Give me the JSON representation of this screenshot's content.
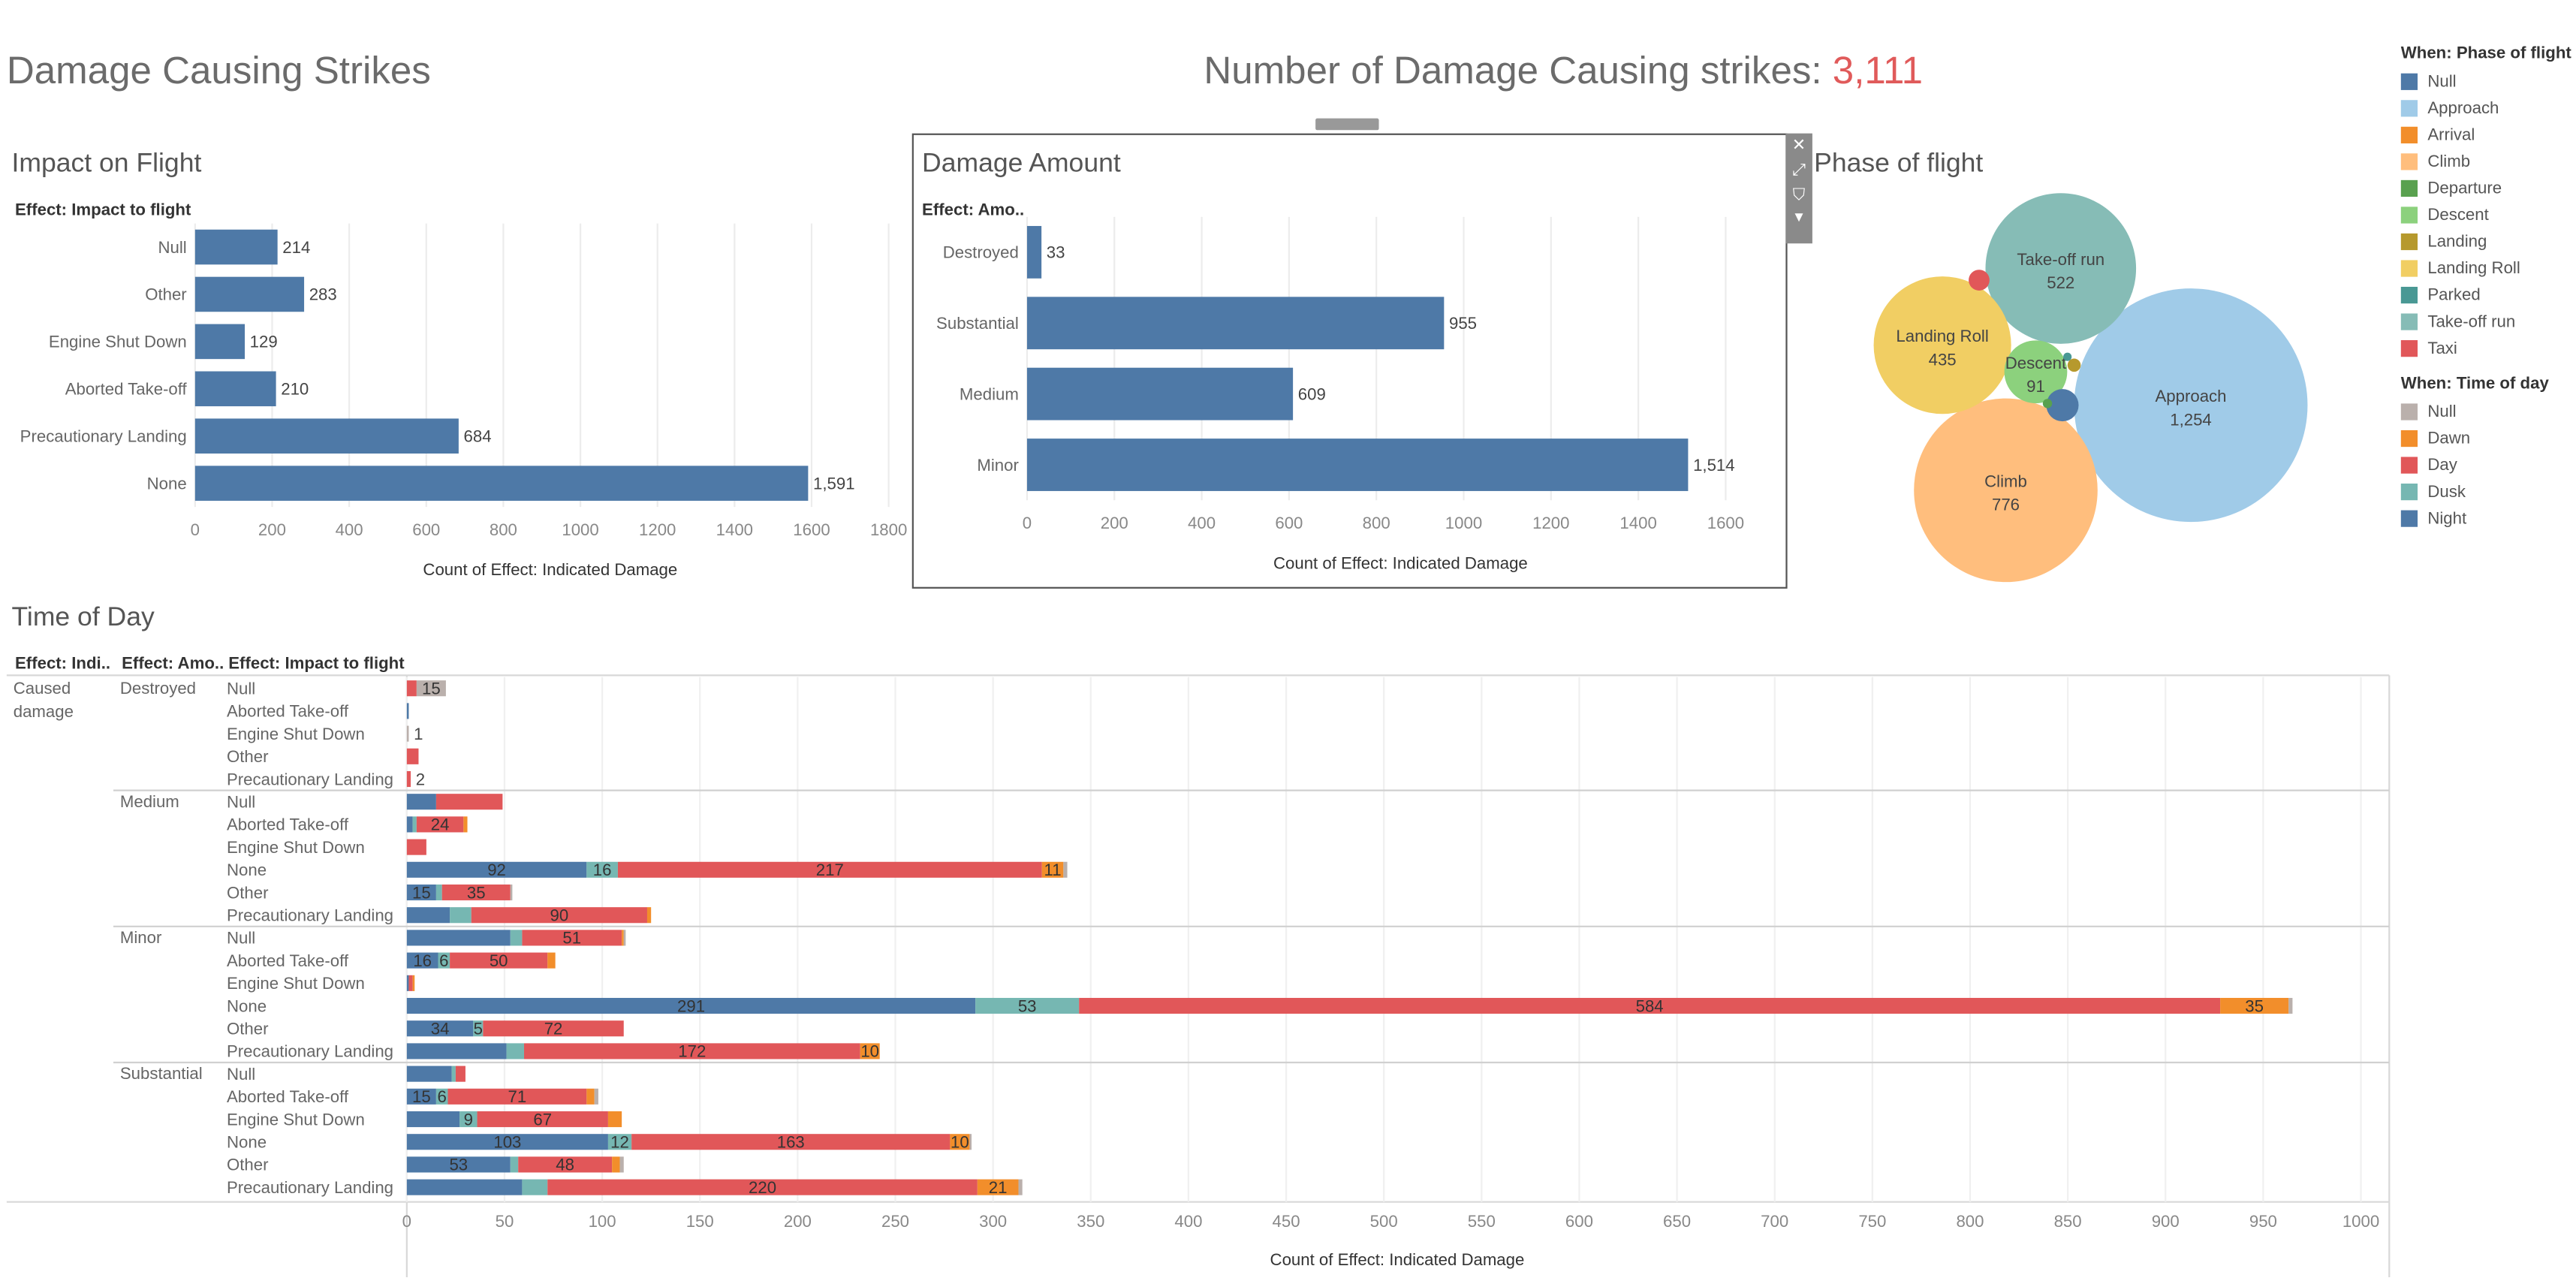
{
  "dashboard_title": "Damage Causing Strikes",
  "kpi": {
    "label": "Number of Damage Causing strikes: ",
    "value": "3,111"
  },
  "legend_phase": {
    "title": "When: Phase of flight",
    "items": [
      {
        "label": "Null",
        "color": "#4e79a7"
      },
      {
        "label": "Approach",
        "color": "#a0cbe8"
      },
      {
        "label": "Arrival",
        "color": "#f28e2b"
      },
      {
        "label": "Climb",
        "color": "#ffbe7d"
      },
      {
        "label": "Departure",
        "color": "#59a14f"
      },
      {
        "label": "Descent",
        "color": "#8cd17d"
      },
      {
        "label": "Landing",
        "color": "#b6992d"
      },
      {
        "label": "Landing Roll",
        "color": "#f1ce63"
      },
      {
        "label": "Parked",
        "color": "#499894"
      },
      {
        "label": "Take-off run",
        "color": "#86bcb6"
      },
      {
        "label": "Taxi",
        "color": "#e15759"
      }
    ]
  },
  "legend_time": {
    "title": "When: Time of day",
    "items": [
      {
        "label": "Null",
        "color": "#bab0ac"
      },
      {
        "label": "Dawn",
        "color": "#f28e2b"
      },
      {
        "label": "Day",
        "color": "#e15759"
      },
      {
        "label": "Dusk",
        "color": "#76b7b2"
      },
      {
        "label": "Night",
        "color": "#4e79a7"
      }
    ]
  },
  "toolbar": {
    "close_icon": "✕",
    "popout_icon": "⤢",
    "filter_icon": "⛉",
    "more_icon": "▾"
  },
  "chart_data": [
    {
      "type": "bar",
      "orientation": "horizontal",
      "title": "Impact on Flight",
      "row_header": "Effect: Impact to flight",
      "categories": [
        "Null",
        "Other",
        "Engine Shut Down",
        "Aborted Take-off",
        "Precautionary Landing",
        "None"
      ],
      "values": [
        214,
        283,
        129,
        210,
        684,
        1591
      ],
      "value_labels": [
        "214",
        "283",
        "129",
        "210",
        "684",
        "1,591"
      ],
      "xlabel": "Count of Effect: Indicated Damage",
      "xlim": [
        0,
        1800
      ],
      "ticks": [
        0,
        200,
        400,
        600,
        800,
        1000,
        1200,
        1400,
        1600,
        1800
      ],
      "color": "#4e79a7"
    },
    {
      "type": "bar",
      "orientation": "horizontal",
      "title": "Damage Amount",
      "row_header": "Effect: Amo..",
      "categories": [
        "Destroyed",
        "Substantial",
        "Medium",
        "Minor"
      ],
      "values": [
        33,
        955,
        609,
        1514
      ],
      "value_labels": [
        "33",
        "955",
        "609",
        "1,514"
      ],
      "xlabel": "Count of Effect: Indicated Damage",
      "xlim": [
        0,
        1600
      ],
      "ticks": [
        0,
        200,
        400,
        600,
        800,
        1000,
        1200,
        1400,
        1600
      ],
      "color": "#4e79a7"
    },
    {
      "type": "bubble",
      "title": "Phase of flight",
      "bubbles": [
        {
          "label": "Approach",
          "value": 1254,
          "value_label": "1,254",
          "color": "#a0cbe8"
        },
        {
          "label": "Climb",
          "value": 776,
          "value_label": "776",
          "color": "#ffbe7d"
        },
        {
          "label": "Take-off run",
          "value": 522,
          "value_label": "522",
          "color": "#86bcb6"
        },
        {
          "label": "Landing Roll",
          "value": 435,
          "value_label": "435",
          "color": "#f1ce63"
        },
        {
          "label": "Descent",
          "value": 91,
          "value_label": "91",
          "color": "#8cd17d"
        },
        {
          "label": "",
          "value": 24,
          "color": "#4e79a7"
        },
        {
          "label": "",
          "value": 10,
          "color": "#e15759"
        },
        {
          "label": "",
          "value": 4,
          "color": "#b6992d"
        },
        {
          "label": "",
          "value": 2,
          "color": "#59a14f"
        },
        {
          "label": "",
          "value": 1,
          "color": "#499894"
        }
      ]
    },
    {
      "type": "bar",
      "orientation": "horizontal",
      "stacked": true,
      "title": "Time of Day",
      "headers": [
        "Effect: Indi..",
        "Effect: Amo..",
        "Effect: Impact to flight"
      ],
      "group1": "Caused damage",
      "xlabel": "Count of Effect: Indicated Damage",
      "xlim": [
        0,
        1000
      ],
      "ticks": [
        0,
        50,
        100,
        150,
        200,
        250,
        300,
        350,
        400,
        450,
        500,
        550,
        600,
        650,
        700,
        750,
        800,
        850,
        900,
        950,
        1000
      ],
      "series_order": [
        "Night",
        "Dusk",
        "Day",
        "Dawn",
        "Null"
      ],
      "series_colors": {
        "Night": "#4e79a7",
        "Dusk": "#76b7b2",
        "Day": "#e15759",
        "Dawn": "#f28e2b",
        "Null": "#bab0ac"
      },
      "groups": [
        {
          "label": "Destroyed",
          "rows": [
            {
              "label": "Null",
              "segs": {
                "Night": 0,
                "Dusk": 0,
                "Day": 5,
                "Dawn": 0,
                "Null": 15
              },
              "labels": {
                "Null": "15"
              }
            },
            {
              "label": "Aborted Take-off",
              "segs": {
                "Night": 1,
                "Dusk": 0,
                "Day": 0,
                "Dawn": 0,
                "Null": 0
              },
              "labels": {}
            },
            {
              "label": "Engine Shut Down",
              "segs": {
                "Night": 0,
                "Dusk": 0,
                "Day": 0,
                "Dawn": 0,
                "Null": 1
              },
              "labels": {},
              "end_label": "1"
            },
            {
              "label": "Other",
              "segs": {
                "Night": 0,
                "Dusk": 0,
                "Day": 6,
                "Dawn": 0,
                "Null": 0
              },
              "labels": {}
            },
            {
              "label": "Precautionary Landing",
              "segs": {
                "Night": 0,
                "Dusk": 0,
                "Day": 2,
                "Dawn": 0,
                "Null": 0
              },
              "labels": {},
              "end_label": "2"
            }
          ]
        },
        {
          "label": "Medium",
          "rows": [
            {
              "label": "Null",
              "segs": {
                "Night": 15,
                "Dusk": 0,
                "Day": 34,
                "Dawn": 0,
                "Null": 0
              },
              "labels": {}
            },
            {
              "label": "Aborted Take-off",
              "segs": {
                "Night": 3,
                "Dusk": 2,
                "Day": 24,
                "Dawn": 2,
                "Null": 0
              },
              "labels": {
                "Day": "24"
              }
            },
            {
              "label": "Engine Shut Down",
              "segs": {
                "Night": 0,
                "Dusk": 0,
                "Day": 10,
                "Dawn": 0,
                "Null": 0
              },
              "labels": {}
            },
            {
              "label": "None",
              "segs": {
                "Night": 92,
                "Dusk": 16,
                "Day": 217,
                "Dawn": 11,
                "Null": 2
              },
              "labels": {
                "Night": "92",
                "Dusk": "16",
                "Day": "217",
                "Dawn": "11"
              }
            },
            {
              "label": "Other",
              "segs": {
                "Night": 15,
                "Dusk": 3,
                "Day": 35,
                "Dawn": 0,
                "Null": 1
              },
              "labels": {
                "Night": "15",
                "Day": "35"
              }
            },
            {
              "label": "Precautionary Landing",
              "segs": {
                "Night": 22,
                "Dusk": 11,
                "Day": 90,
                "Dawn": 2,
                "Null": 0
              },
              "labels": {
                "Day": "90"
              }
            }
          ]
        },
        {
          "label": "Minor",
          "rows": [
            {
              "label": "Null",
              "segs": {
                "Night": 53,
                "Dusk": 6,
                "Day": 51,
                "Dawn": 1,
                "Null": 1
              },
              "labels": {
                "Day": "51"
              }
            },
            {
              "label": "Aborted Take-off",
              "segs": {
                "Night": 16,
                "Dusk": 6,
                "Day": 50,
                "Dawn": 4,
                "Null": 0
              },
              "labels": {
                "Night": "16",
                "Dusk": "6",
                "Day": "50"
              }
            },
            {
              "label": "Engine Shut Down",
              "segs": {
                "Night": 1,
                "Dusk": 0,
                "Day": 2,
                "Dawn": 1,
                "Null": 0
              },
              "labels": {}
            },
            {
              "label": "None",
              "segs": {
                "Night": 291,
                "Dusk": 53,
                "Day": 584,
                "Dawn": 35,
                "Null": 2
              },
              "labels": {
                "Night": "291",
                "Dusk": "53",
                "Day": "584",
                "Dawn": "35"
              }
            },
            {
              "label": "Other",
              "segs": {
                "Night": 34,
                "Dusk": 5,
                "Day": 72,
                "Dawn": 0,
                "Null": 0
              },
              "labels": {
                "Night": "34",
                "Dusk": "5",
                "Day": "72"
              }
            },
            {
              "label": "Precautionary Landing",
              "segs": {
                "Night": 51,
                "Dusk": 9,
                "Day": 172,
                "Dawn": 10,
                "Null": 0
              },
              "labels": {
                "Day": "172",
                "Dawn": "10"
              }
            }
          ]
        },
        {
          "label": "Substantial",
          "rows": [
            {
              "label": "Null",
              "segs": {
                "Night": 23,
                "Dusk": 2,
                "Day": 5,
                "Dawn": 0,
                "Null": 0
              },
              "labels": {}
            },
            {
              "label": "Aborted Take-off",
              "segs": {
                "Night": 15,
                "Dusk": 6,
                "Day": 71,
                "Dawn": 4,
                "Null": 2
              },
              "labels": {
                "Night": "15",
                "Dusk": "6",
                "Day": "71"
              }
            },
            {
              "label": "Engine Shut Down",
              "segs": {
                "Night": 27,
                "Dusk": 9,
                "Day": 67,
                "Dawn": 7,
                "Null": 0
              },
              "labels": {
                "Dusk": "9",
                "Day": "67"
              }
            },
            {
              "label": "None",
              "segs": {
                "Night": 103,
                "Dusk": 12,
                "Day": 163,
                "Dawn": 10,
                "Null": 1
              },
              "labels": {
                "Night": "103",
                "Dusk": "12",
                "Day": "163",
                "Dawn": "10"
              }
            },
            {
              "label": "Other",
              "segs": {
                "Night": 53,
                "Dusk": 4,
                "Day": 48,
                "Dawn": 4,
                "Null": 2
              },
              "labels": {
                "Night": "53",
                "Day": "48"
              }
            },
            {
              "label": "Precautionary Landing",
              "segs": {
                "Night": 59,
                "Dusk": 13,
                "Day": 220,
                "Dawn": 21,
                "Null": 2
              },
              "labels": {
                "Day": "220",
                "Dawn": "21"
              }
            }
          ]
        }
      ]
    }
  ]
}
